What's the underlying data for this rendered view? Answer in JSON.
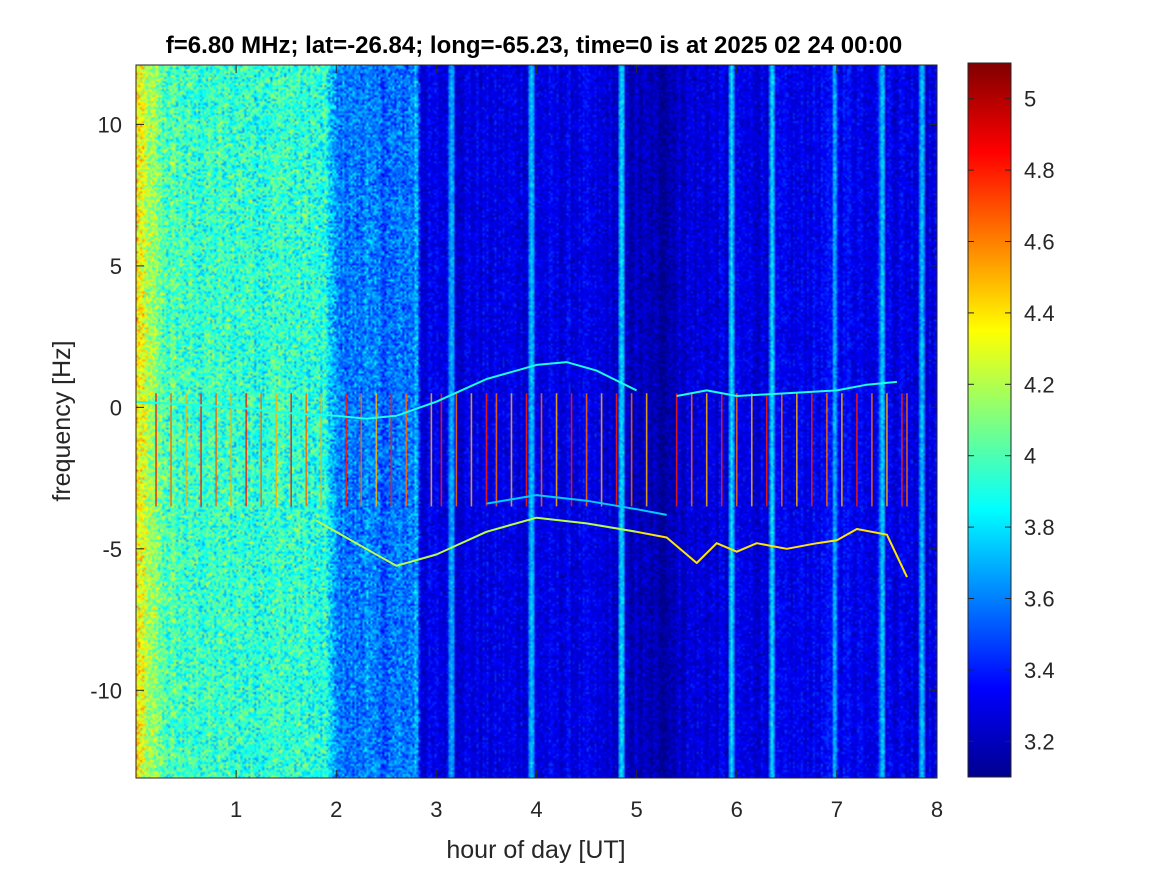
{
  "figure": {
    "title": "f=6.80 MHz;  lat=-26.84; long=-65.23, time=0 is at 2025 02 24 00:00"
  },
  "chart_data": {
    "type": "heatmap",
    "title": "f=6.80 MHz;  lat=-26.84; long=-65.23, time=0 is at 2025 02 24 00:00",
    "xlabel": "hour of day [UT]",
    "ylabel": "frequency [Hz]",
    "xlim": [
      0,
      8
    ],
    "ylim": [
      -13.1,
      12.1
    ],
    "x_ticks": [
      1,
      2,
      3,
      4,
      5,
      6,
      7,
      8
    ],
    "x_tick_labels": [
      "1",
      "2",
      "3",
      "4",
      "5",
      "6",
      "7",
      "8"
    ],
    "y_ticks": [
      10,
      5,
      0,
      -5,
      -10
    ],
    "y_tick_labels": [
      "10",
      "5",
      "0",
      "-5",
      "-10"
    ],
    "colorbar": {
      "colormap": "jet",
      "clim": [
        3.1,
        5.1
      ],
      "ticks": [
        5,
        4.8,
        4.6,
        4.4,
        4.2,
        4,
        3.8,
        3.6,
        3.4,
        3.2
      ],
      "tick_labels": [
        "5",
        "4.8",
        "4.6",
        "4.4",
        "4.2",
        "4",
        "3.8",
        "3.6",
        "3.4",
        "3.2"
      ]
    },
    "background_level_by_hour": {
      "hours": [
        0.0,
        0.1,
        0.3,
        0.6,
        1.0,
        1.5,
        1.9,
        2.0,
        2.5,
        2.8,
        2.85,
        3.5,
        4.5,
        5.0,
        5.25,
        5.5,
        6.5,
        7.0,
        8.0
      ],
      "level": [
        4.4,
        4.2,
        4.0,
        3.95,
        3.95,
        3.95,
        3.9,
        3.6,
        3.55,
        3.6,
        3.3,
        3.3,
        3.3,
        3.22,
        3.18,
        3.28,
        3.3,
        3.35,
        3.3
      ]
    },
    "traces": [
      {
        "x": [
          0.0,
          0.5,
          1.0,
          1.5,
          2.0,
          2.3,
          2.6,
          3.0,
          3.5,
          4.0,
          4.3,
          4.6,
          5.0
        ],
        "y": [
          0.2,
          0.1,
          0.0,
          -0.2,
          -0.3,
          -0.4,
          -0.3,
          0.2,
          1.0,
          1.5,
          1.6,
          1.3,
          0.6
        ],
        "level": 3.9
      },
      {
        "x": [
          5.4,
          5.7,
          6.0,
          6.5,
          7.0,
          7.3,
          7.6
        ],
        "y": [
          0.4,
          0.6,
          0.4,
          0.5,
          0.6,
          0.8,
          0.9
        ],
        "level": 3.9
      },
      {
        "x": [
          1.8,
          2.2,
          2.6,
          3.0,
          3.5,
          4.0,
          4.5,
          5.0
        ],
        "y": [
          -4.0,
          -4.8,
          -5.6,
          -5.2,
          -4.4,
          -3.9,
          -4.1,
          -4.4
        ],
        "level": 4.2
      },
      {
        "x": [
          5.0,
          5.3,
          5.6,
          5.8,
          6.0,
          6.2,
          6.5,
          6.8,
          7.0,
          7.2,
          7.5,
          7.7
        ],
        "y": [
          -4.4,
          -4.6,
          -5.5,
          -4.8,
          -5.1,
          -4.8,
          -5.0,
          -4.8,
          -4.7,
          -4.3,
          -4.5,
          -6.0
        ],
        "level": 4.4
      },
      {
        "x": [
          3.5,
          4.0,
          4.5,
          5.0,
          5.3
        ],
        "y": [
          -3.4,
          -3.1,
          -3.3,
          -3.6,
          -3.8
        ],
        "level": 3.75
      }
    ],
    "vertical_streaks": {
      "x": [
        0.2,
        0.35,
        0.5,
        0.65,
        0.8,
        0.95,
        1.1,
        1.25,
        1.4,
        1.55,
        1.7,
        1.85,
        2.1,
        2.25,
        2.4,
        2.55,
        2.7,
        2.95,
        3.05,
        3.2,
        3.35,
        3.5,
        3.6,
        3.75,
        3.9,
        4.05,
        4.2,
        4.35,
        4.5,
        4.65,
        4.8,
        4.95,
        5.1,
        5.4,
        5.55,
        5.7,
        5.85,
        6.0,
        6.15,
        6.3,
        6.45,
        6.6,
        6.75,
        6.9,
        7.05,
        7.2,
        7.35,
        7.5,
        7.65,
        7.7
      ],
      "y_range": [
        -3.5,
        0.5
      ],
      "peak_level": 4.8
    },
    "broadband_columns": {
      "x": [
        0.05,
        1.95,
        2.3,
        2.8,
        3.15,
        3.95,
        4.85,
        5.95,
        6.35,
        6.98,
        7.45,
        7.85
      ],
      "level": 3.75
    }
  }
}
